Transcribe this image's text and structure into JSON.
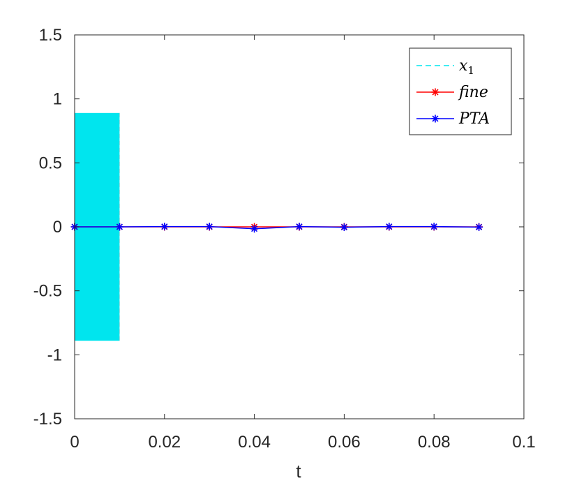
{
  "chart_data": {
    "type": "line",
    "xlabel": "t",
    "ylabel": "",
    "title": "",
    "xlim": [
      0,
      0.1
    ],
    "ylim": [
      -1.5,
      1.5
    ],
    "xticks": [
      0,
      0.02,
      0.04,
      0.06,
      0.08,
      0.1
    ],
    "xtick_labels": [
      "0",
      "0.02",
      "0.04",
      "0.06",
      "0.08",
      "0.1"
    ],
    "yticks": [
      -1.5,
      -1,
      -0.5,
      0,
      0.5,
      1,
      1.5
    ],
    "ytick_labels": [
      "-1.5",
      "-1",
      "-0.5",
      "0",
      "0.5",
      "1",
      "1.5"
    ],
    "grid": false,
    "legend_placement": "top-right",
    "band": {
      "name": "x1",
      "x_start": 0,
      "x_end": 0.01,
      "y_min": -0.89,
      "y_max": 0.89,
      "color": "#00e5ee"
    },
    "series": [
      {
        "name": "fine",
        "color": "#ff0000",
        "marker": "*",
        "x": [
          0,
          0.01,
          0.02,
          0.03,
          0.04,
          0.05,
          0.06,
          0.07,
          0.08,
          0.09
        ],
        "y": [
          0,
          0,
          0,
          0,
          0,
          0,
          0,
          0,
          0,
          0
        ]
      },
      {
        "name": "PTA",
        "color": "#0000ff",
        "marker": "*",
        "x": [
          0,
          0.01,
          0.02,
          0.03,
          0.04,
          0.05,
          0.06,
          0.07,
          0.08,
          0.09
        ],
        "y": [
          0,
          0,
          0.002,
          0.002,
          -0.015,
          0.002,
          -0.003,
          0.002,
          0.002,
          -0.002
        ]
      }
    ]
  },
  "legend": {
    "entries": [
      {
        "label": "x",
        "subscript": "1",
        "color": "#00e5ee",
        "style": "dashed"
      },
      {
        "label": "fine",
        "subscript": "",
        "color": "#ff0000",
        "style": "solid-star"
      },
      {
        "label": "PTA",
        "subscript": "",
        "color": "#0000ff",
        "style": "solid-star"
      }
    ]
  }
}
